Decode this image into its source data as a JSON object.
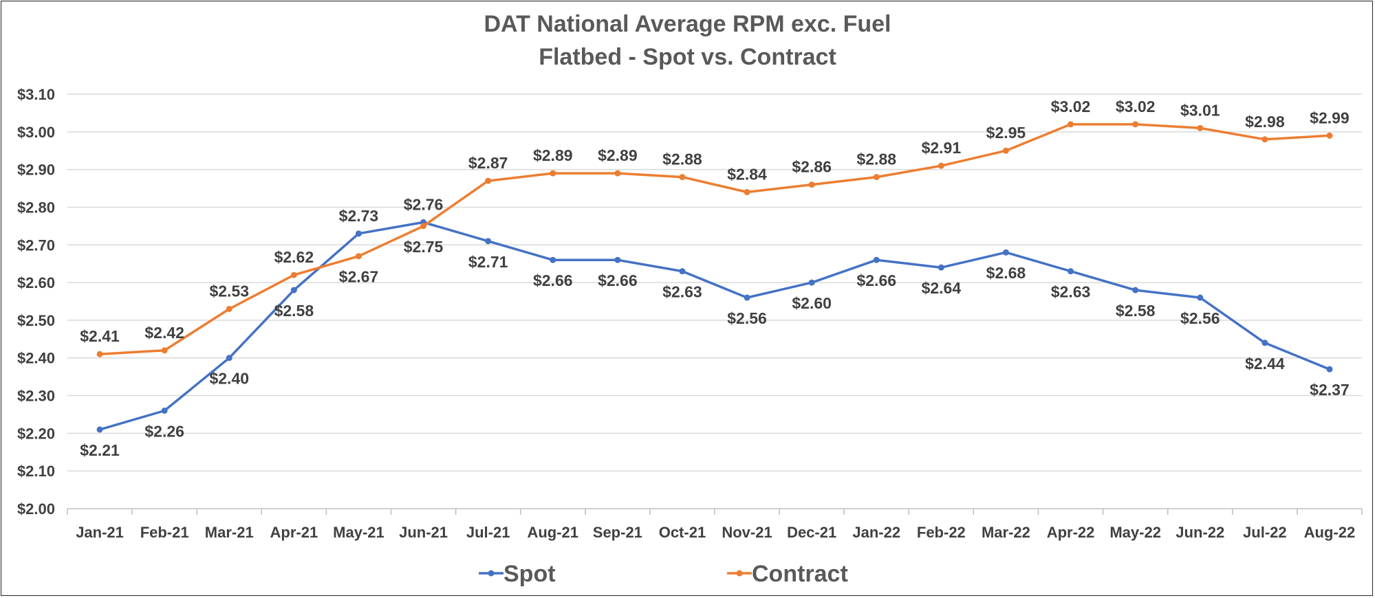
{
  "chart_data": {
    "type": "line",
    "title": "DAT National Average RPM exc. Fuel",
    "subtitle": "Flatbed - Spot vs. Contract",
    "xlabel": "",
    "ylabel": "",
    "ylim": [
      2.0,
      3.1
    ],
    "ytick_step": 0.1,
    "ytick_labels": [
      "$2.00",
      "$2.10",
      "$2.20",
      "$2.30",
      "$2.40",
      "$2.50",
      "$2.60",
      "$2.70",
      "$2.80",
      "$2.90",
      "$3.00",
      "$3.10"
    ],
    "grid": true,
    "legend_position": "bottom",
    "categories": [
      "Jan-21",
      "Feb-21",
      "Mar-21",
      "Apr-21",
      "May-21",
      "Jun-21",
      "Jul-21",
      "Aug-21",
      "Sep-21",
      "Oct-21",
      "Nov-21",
      "Dec-21",
      "Jan-22",
      "Feb-22",
      "Mar-22",
      "Apr-22",
      "May-22",
      "Jun-22",
      "Jul-22",
      "Aug-22"
    ],
    "series": [
      {
        "name": "Spot",
        "color": "#4472C4",
        "label_position": [
          "below",
          "below",
          "below",
          "below",
          "above",
          "above",
          "below",
          "below",
          "below",
          "below",
          "below",
          "below",
          "below",
          "below",
          "below",
          "below",
          "below",
          "below",
          "below",
          "below"
        ],
        "values": [
          2.21,
          2.26,
          2.4,
          2.58,
          2.73,
          2.76,
          2.71,
          2.66,
          2.66,
          2.63,
          2.56,
          2.6,
          2.66,
          2.64,
          2.68,
          2.63,
          2.58,
          2.56,
          2.44,
          2.37
        ],
        "labels": [
          "$2.21",
          "$2.26",
          "$2.40",
          "$2.58",
          "$2.73",
          "$2.76",
          "$2.71",
          "$2.66",
          "$2.66",
          "$2.63",
          "$2.56",
          "$2.60",
          "$2.66",
          "$2.64",
          "$2.68",
          "$2.63",
          "$2.58",
          "$2.56",
          "$2.44",
          "$2.37"
        ]
      },
      {
        "name": "Contract",
        "color": "#ED7D31",
        "label_position": [
          "above",
          "above",
          "above",
          "above",
          "below",
          "below",
          "above",
          "above",
          "above",
          "above",
          "above",
          "above",
          "above",
          "above",
          "above",
          "above",
          "above",
          "above",
          "above",
          "above"
        ],
        "values": [
          2.41,
          2.42,
          2.53,
          2.62,
          2.67,
          2.75,
          2.87,
          2.89,
          2.89,
          2.88,
          2.84,
          2.86,
          2.88,
          2.91,
          2.95,
          3.02,
          3.02,
          3.01,
          2.98,
          2.99
        ],
        "labels": [
          "$2.41",
          "$2.42",
          "$2.53",
          "$2.62",
          "$2.67",
          "$2.75",
          "$2.87",
          "$2.89",
          "$2.89",
          "$2.88",
          "$2.84",
          "$2.86",
          "$2.88",
          "$2.91",
          "$2.95",
          "$3.02",
          "$3.02",
          "$3.01",
          "$2.98",
          "$2.99"
        ]
      }
    ]
  }
}
